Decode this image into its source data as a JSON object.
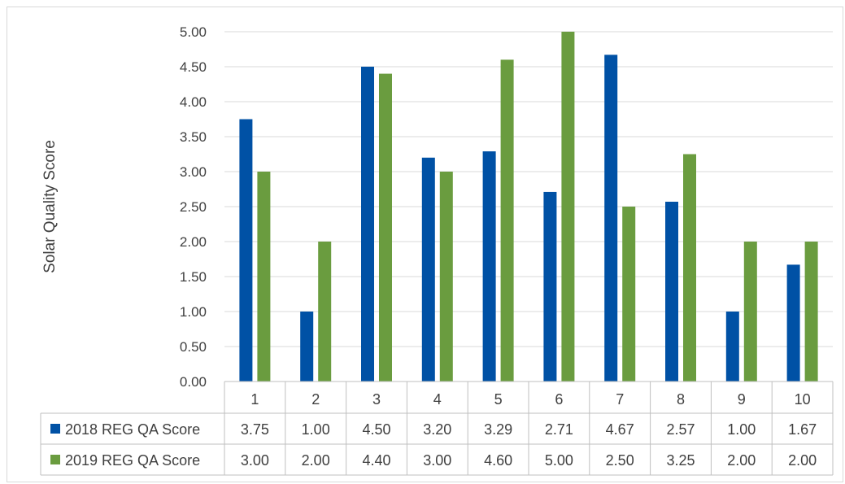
{
  "chart_data": {
    "type": "bar",
    "title": "",
    "xlabel": "",
    "ylabel": "Solar Quality Score",
    "ylim": [
      0,
      5
    ],
    "ytick_step": 0.5,
    "yticks": [
      "0.00",
      "0.50",
      "1.00",
      "1.50",
      "2.00",
      "2.50",
      "3.00",
      "3.50",
      "4.00",
      "4.50",
      "5.00"
    ],
    "grid": true,
    "legend": "data-table-below",
    "categories": [
      "1",
      "2",
      "3",
      "4",
      "5",
      "6",
      "7",
      "8",
      "9",
      "10"
    ],
    "series": [
      {
        "name": "2018 REG QA Score",
        "color": "#0051a5",
        "values": [
          3.75,
          1.0,
          4.5,
          3.2,
          3.29,
          2.71,
          4.67,
          2.57,
          1.0,
          1.67
        ],
        "labels": [
          "3.75",
          "1.00",
          "4.50",
          "3.20",
          "3.29",
          "2.71",
          "4.67",
          "2.57",
          "1.00",
          "1.67"
        ]
      },
      {
        "name": "2019 REG QA Score",
        "color": "#6a9c3f",
        "values": [
          3.0,
          2.0,
          4.4,
          3.0,
          4.6,
          5.0,
          2.5,
          3.25,
          2.0,
          2.0
        ],
        "labels": [
          "3.00",
          "2.00",
          "4.40",
          "3.00",
          "4.60",
          "5.00",
          "2.50",
          "3.25",
          "2.00",
          "2.00"
        ]
      }
    ]
  }
}
